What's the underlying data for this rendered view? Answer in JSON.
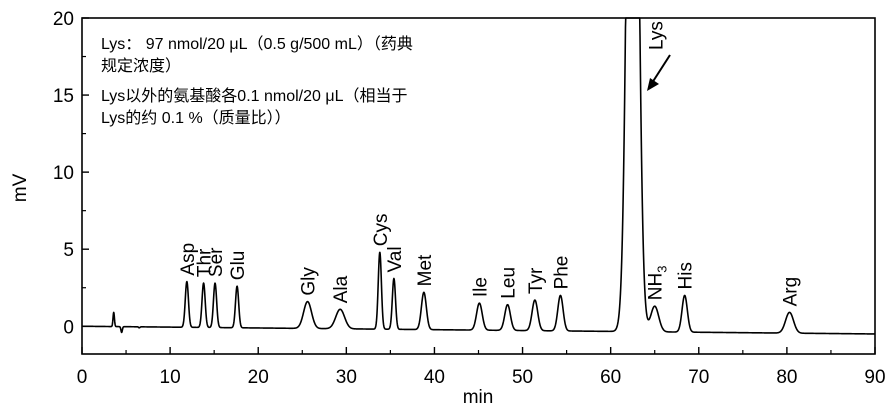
{
  "chart_data": {
    "type": "line",
    "xlabel": "min",
    "ylabel": "mV",
    "xlim": [
      0,
      90
    ],
    "ylim": [
      -1.8,
      20
    ],
    "x_ticks": [
      0,
      10,
      20,
      30,
      40,
      50,
      60,
      70,
      80,
      90
    ],
    "y_ticks": [
      0,
      5,
      10,
      15,
      20
    ],
    "baseline": {
      "start": 0.0,
      "end": -0.5,
      "noise": [
        {
          "x": 3.6,
          "y": 0.9
        },
        {
          "x": 4.5,
          "y": -0.4
        },
        {
          "x": 6.5,
          "y": -0.1
        }
      ]
    },
    "peaks": [
      {
        "label": "Asp",
        "x": 11.9,
        "y": 2.9
      },
      {
        "label": "Thr",
        "x": 13.8,
        "y": 2.8
      },
      {
        "label": "Ser",
        "x": 15.1,
        "y": 2.8
      },
      {
        "label": "Glu",
        "x": 17.6,
        "y": 2.6
      },
      {
        "label": "Gly",
        "x": 25.6,
        "y": 1.6
      },
      {
        "label": "Ala",
        "x": 29.3,
        "y": 1.1
      },
      {
        "label": "Cys",
        "x": 33.8,
        "y": 4.8
      },
      {
        "label": "Val",
        "x": 35.4,
        "y": 3.1
      },
      {
        "label": "Met",
        "x": 38.8,
        "y": 2.2
      },
      {
        "label": "Ile",
        "x": 45.1,
        "y": 1.5
      },
      {
        "label": "Leu",
        "x": 48.3,
        "y": 1.4
      },
      {
        "label": "Tyr",
        "x": 51.4,
        "y": 1.7
      },
      {
        "label": "Phe",
        "x": 54.3,
        "y": 2.0
      },
      {
        "label": "Lys",
        "x": 62.5,
        "y": 20
      },
      {
        "label": "NH3",
        "x": 65.0,
        "y": 1.3
      },
      {
        "label": "His",
        "x": 68.4,
        "y": 2.0
      },
      {
        "label": "Arg",
        "x": 80.3,
        "y": 0.9
      }
    ],
    "annotation": {
      "lines": [
        "Lys： 97 nmol/20 μL（0.5 g/500 mL）（药典",
        "规定浓度）",
        "Lys以外的氨基酸各0.1 nmol/20 μL（相当于",
        "Lys的约 0.1 %（质量比））"
      ]
    }
  }
}
